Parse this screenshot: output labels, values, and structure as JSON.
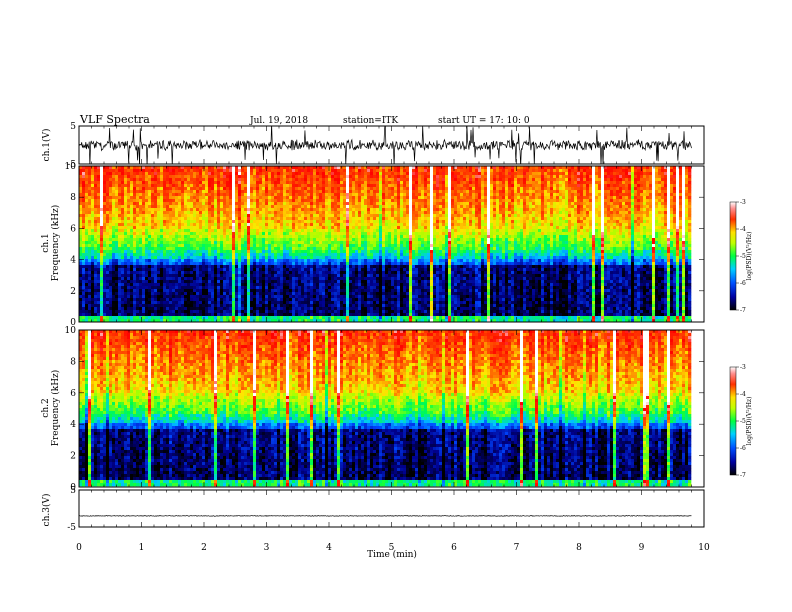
{
  "header": {
    "title": "VLF Spectra",
    "date": "Jul. 19, 2018",
    "station": "station=ITK",
    "start": "start UT =  17: 10: 0"
  },
  "colors": {
    "spectrogram_ramp": [
      "#000040",
      "#0000ff",
      "#00ffff",
      "#00ff00",
      "#ffff00",
      "#ff8000",
      "#ff0000",
      "#ffffff"
    ]
  },
  "chart_data": [
    {
      "type": "line",
      "panel": "waveform-ch1",
      "ylabel": "ch.1(V)",
      "ylim": [
        -5,
        5
      ],
      "yticks": [
        {
          "v": 5,
          "label": "5"
        },
        {
          "v": -5,
          "label": "-5"
        }
      ],
      "xlim": [
        0,
        10
      ],
      "series": [
        {
          "values": {
            "x_range": [
              0,
              9.8
            ],
            "baseline": 0,
            "noise_amplitude": 1.5,
            "spike_amplitude": 6
          }
        }
      ]
    },
    {
      "type": "heatmap",
      "panel": "spectrogram-ch1",
      "ylabel_top": "ch.1",
      "ylabel": "Frequency (kHz)",
      "ylim": [
        0,
        10
      ],
      "xlim": [
        0,
        10
      ],
      "data_extent_x": [
        0,
        9.8
      ],
      "yticks": [
        {
          "v": 0,
          "label": "0"
        },
        {
          "v": 2,
          "label": "2"
        },
        {
          "v": 4,
          "label": "4"
        },
        {
          "v": 6,
          "label": "6"
        },
        {
          "v": 8,
          "label": "8"
        },
        {
          "v": 10,
          "label": "10"
        }
      ],
      "colorbar": {
        "label": "log(PSD)(V²/Hz)",
        "range": [
          -7,
          -3
        ],
        "ticks": [
          {
            "v": -3,
            "label": "-3"
          },
          {
            "v": -4,
            "label": "-4"
          },
          {
            "v": -5,
            "label": "-5"
          },
          {
            "v": -6,
            "label": "-6"
          },
          {
            "v": -7,
            "label": "-7"
          }
        ]
      }
    },
    {
      "type": "heatmap",
      "panel": "spectrogram-ch2",
      "ylabel_top": "ch.2",
      "ylabel": "Frequency (kHz)",
      "ylim": [
        0,
        10
      ],
      "xlim": [
        0,
        10
      ],
      "data_extent_x": [
        0,
        9.8
      ],
      "yticks": [
        {
          "v": 0,
          "label": "0"
        },
        {
          "v": 2,
          "label": "2"
        },
        {
          "v": 4,
          "label": "4"
        },
        {
          "v": 6,
          "label": "6"
        },
        {
          "v": 8,
          "label": "8"
        },
        {
          "v": 10,
          "label": "10"
        }
      ],
      "colorbar": {
        "label": "log(PSD)(V²/Hz)",
        "range": [
          -7,
          -3
        ],
        "ticks": [
          {
            "v": -3,
            "label": "-3"
          },
          {
            "v": -4,
            "label": "-4"
          },
          {
            "v": -5,
            "label": "-5"
          },
          {
            "v": -6,
            "label": "-6"
          },
          {
            "v": -7,
            "label": "-7"
          }
        ]
      }
    },
    {
      "type": "line",
      "panel": "waveform-ch3",
      "ylabel": "ch.3(V)",
      "ylim": [
        -5,
        5
      ],
      "yticks": [
        {
          "v": 5,
          "label": "5"
        },
        {
          "v": -5,
          "label": "-5"
        }
      ],
      "xlim": [
        0,
        10
      ],
      "xlabel": "Time (min)",
      "xticks": [
        {
          "v": 0,
          "label": "0"
        },
        {
          "v": 1,
          "label": "1"
        },
        {
          "v": 2,
          "label": "2"
        },
        {
          "v": 3,
          "label": "3"
        },
        {
          "v": 4,
          "label": "4"
        },
        {
          "v": 5,
          "label": "5"
        },
        {
          "v": 6,
          "label": "6"
        },
        {
          "v": 7,
          "label": "7"
        },
        {
          "v": 8,
          "label": "8"
        },
        {
          "v": 9,
          "label": "9"
        },
        {
          "v": 10,
          "label": "10"
        }
      ],
      "series": [
        {
          "values": {
            "x_range": [
              0,
              9.8
            ],
            "baseline": -2,
            "noise_amplitude": 0.1
          }
        }
      ]
    }
  ]
}
